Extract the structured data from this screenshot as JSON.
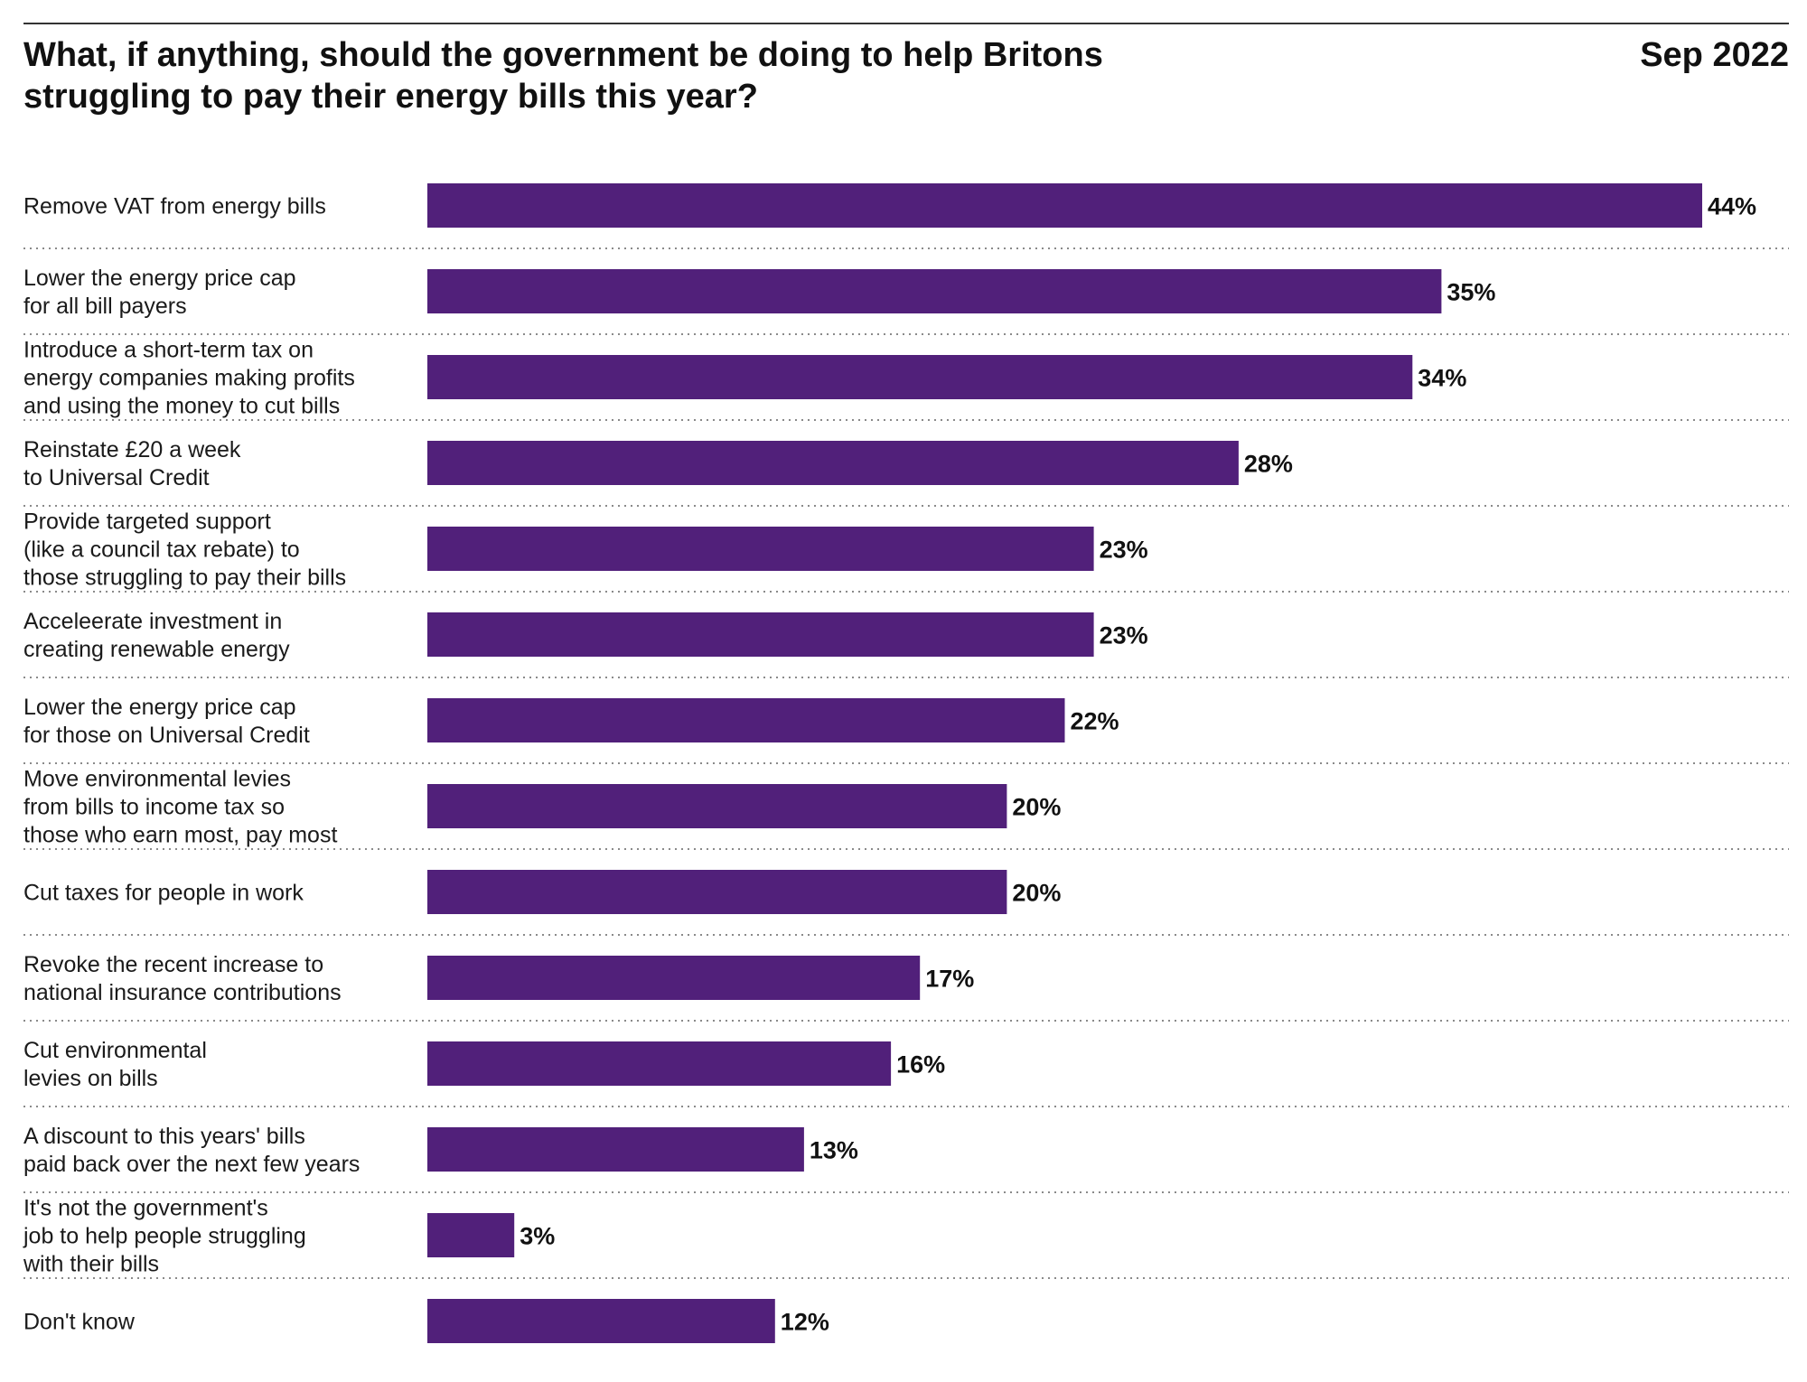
{
  "title_lines": [
    "What, if anything, should the government be doing to help Britons",
    "struggling to pay their energy bills this year?"
  ],
  "date": "Sep 2022",
  "colors": {
    "bar": "#51207a",
    "divider": "#8a8a8a",
    "rule": "#333333"
  },
  "chart_data": {
    "type": "bar",
    "orientation": "horizontal",
    "title": "What, if anything, should the government be doing to help Britons struggling to pay their energy bills this year?",
    "unit": "%",
    "categories": [
      [
        "Remove VAT from energy bills"
      ],
      [
        "Lower the energy price cap",
        "for all bill payers"
      ],
      [
        "Introduce a short-term  tax on",
        "energy companies making profits",
        "and using the money to cut bills"
      ],
      [
        "Reinstate £20 a week",
        "to Universal Credit"
      ],
      [
        "Provide targeted support",
        "(like a council tax rebate) to",
        "those struggling to pay their bills"
      ],
      [
        "Acceleerate investment in",
        "creating renewable energy"
      ],
      [
        "Lower the energy price cap",
        "for those on Universal Credit"
      ],
      [
        "Move environmental levies",
        "from bills to income tax so",
        "those who earn most, pay most"
      ],
      [
        "Cut taxes for people in work"
      ],
      [
        "Revoke the recent increase to",
        "national insurance contributions"
      ],
      [
        "Cut environmental",
        "levies on bills"
      ],
      [
        "A discount to this years' bills",
        "paid back over the next few years"
      ],
      [
        "It's not the government's",
        "job to help people struggling",
        "with their bills"
      ],
      [
        "Don't know"
      ]
    ],
    "values": [
      44,
      35,
      34,
      28,
      23,
      23,
      22,
      20,
      20,
      17,
      16,
      13,
      3,
      12
    ],
    "value_labels": [
      "44%",
      "35%",
      "34%",
      "28%",
      "23%",
      "23%",
      "22%",
      "20%",
      "20%",
      "17%",
      "16%",
      "13%",
      "3%",
      "12%"
    ],
    "xlim": [
      0,
      44
    ],
    "grid": false,
    "legend": "none"
  }
}
